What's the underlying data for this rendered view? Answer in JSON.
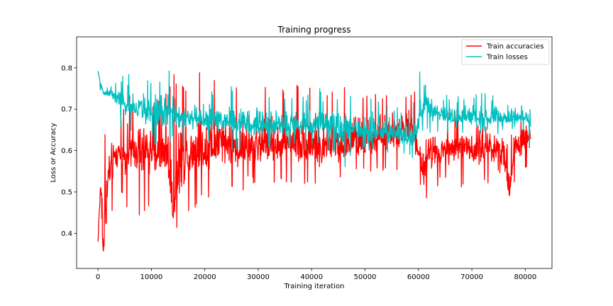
{
  "chart_data": {
    "type": "line",
    "title": "Training progress",
    "xlabel": "Training iteration",
    "ylabel": "Loss or Accuracy",
    "xlim": [
      -4000,
      85000
    ],
    "ylim": [
      0.315,
      0.875
    ],
    "xticks": [
      0,
      10000,
      20000,
      30000,
      40000,
      50000,
      60000,
      70000,
      80000
    ],
    "yticks": [
      0.4,
      0.5,
      0.6,
      0.7,
      0.8
    ],
    "xtick_labels": [
      "0",
      "10000",
      "20000",
      "30000",
      "40000",
      "50000",
      "60000",
      "70000",
      "80000"
    ],
    "ytick_labels": [
      "0.4",
      "0.5",
      "0.6",
      "0.7",
      "0.8"
    ],
    "legend_position": "top-right",
    "grid": false,
    "series": [
      {
        "name": "Train accuracies",
        "color": "#ff0000",
        "x": [
          0,
          500,
          1000,
          2000,
          3000,
          4000,
          5000,
          6000,
          7000,
          8000,
          9000,
          10000,
          11000,
          12000,
          13000,
          14000,
          15000,
          16000,
          17000,
          18000,
          20000,
          22000,
          24000,
          25000,
          26000,
          28000,
          30000,
          32000,
          34000,
          36000,
          38000,
          40000,
          42000,
          44000,
          46000,
          48000,
          50000,
          52000,
          54000,
          56000,
          58000,
          59000,
          60000,
          61000,
          62000,
          63000,
          64000,
          66000,
          68000,
          70000,
          72000,
          74000,
          76000,
          77000,
          78000,
          80000,
          81000
        ],
        "y": [
          0.38,
          0.52,
          0.34,
          0.55,
          0.58,
          0.6,
          0.58,
          0.6,
          0.59,
          0.6,
          0.6,
          0.6,
          0.59,
          0.6,
          0.6,
          0.44,
          0.56,
          0.58,
          0.6,
          0.6,
          0.6,
          0.61,
          0.61,
          0.62,
          0.6,
          0.6,
          0.61,
          0.62,
          0.61,
          0.62,
          0.61,
          0.61,
          0.6,
          0.62,
          0.61,
          0.62,
          0.62,
          0.62,
          0.64,
          0.64,
          0.65,
          0.66,
          0.6,
          0.54,
          0.6,
          0.6,
          0.6,
          0.6,
          0.61,
          0.6,
          0.61,
          0.61,
          0.6,
          0.48,
          0.62,
          0.62,
          0.64
        ],
        "y_max": [
          0.4,
          0.6,
          0.64,
          0.64,
          0.66,
          0.68,
          0.72,
          0.74,
          0.72,
          0.72,
          0.72,
          0.72,
          0.72,
          0.74,
          0.74,
          0.8,
          0.76,
          0.76,
          0.76,
          0.78,
          0.8,
          0.78,
          0.76,
          0.82,
          0.76,
          0.76,
          0.78,
          0.76,
          0.76,
          0.76,
          0.76,
          0.76,
          0.76,
          0.74,
          0.76,
          0.76,
          0.74,
          0.74,
          0.74,
          0.74,
          0.74,
          0.76,
          0.74,
          0.72,
          0.7,
          0.7,
          0.7,
          0.7,
          0.7,
          0.7,
          0.7,
          0.7,
          0.7,
          0.72,
          0.72,
          0.72,
          0.72
        ],
        "y_min": [
          0.38,
          0.46,
          0.34,
          0.42,
          0.46,
          0.5,
          0.48,
          0.44,
          0.48,
          0.42,
          0.46,
          0.44,
          0.46,
          0.48,
          0.46,
          0.4,
          0.4,
          0.4,
          0.44,
          0.46,
          0.48,
          0.5,
          0.52,
          0.5,
          0.48,
          0.52,
          0.52,
          0.52,
          0.52,
          0.52,
          0.52,
          0.52,
          0.5,
          0.52,
          0.52,
          0.54,
          0.54,
          0.54,
          0.54,
          0.54,
          0.56,
          0.56,
          0.52,
          0.46,
          0.48,
          0.5,
          0.52,
          0.52,
          0.5,
          0.5,
          0.52,
          0.5,
          0.46,
          0.52,
          0.52,
          0.54,
          0.58
        ]
      },
      {
        "name": "Train losses",
        "color": "#00bfbf",
        "x": [
          0,
          500,
          1000,
          2000,
          3000,
          4000,
          5000,
          6000,
          7000,
          8000,
          9000,
          10000,
          11000,
          12000,
          13000,
          14000,
          15000,
          16000,
          17000,
          18000,
          20000,
          22000,
          24000,
          25000,
          26000,
          28000,
          30000,
          32000,
          34000,
          36000,
          38000,
          40000,
          42000,
          44000,
          46000,
          48000,
          50000,
          52000,
          54000,
          56000,
          58000,
          59000,
          60000,
          61000,
          62000,
          63000,
          64000,
          66000,
          68000,
          70000,
          72000,
          74000,
          76000,
          77000,
          78000,
          80000,
          81000
        ],
        "y": [
          0.79,
          0.76,
          0.74,
          0.74,
          0.73,
          0.72,
          0.71,
          0.7,
          0.7,
          0.7,
          0.69,
          0.69,
          0.69,
          0.69,
          0.69,
          0.7,
          0.68,
          0.68,
          0.68,
          0.68,
          0.67,
          0.67,
          0.67,
          0.67,
          0.67,
          0.66,
          0.66,
          0.66,
          0.66,
          0.66,
          0.66,
          0.66,
          0.66,
          0.66,
          0.65,
          0.65,
          0.65,
          0.65,
          0.64,
          0.64,
          0.63,
          0.63,
          0.66,
          0.72,
          0.7,
          0.69,
          0.69,
          0.68,
          0.68,
          0.68,
          0.68,
          0.68,
          0.68,
          0.68,
          0.68,
          0.68,
          0.66
        ],
        "y_max": [
          0.8,
          0.78,
          0.76,
          0.76,
          0.76,
          0.77,
          0.79,
          0.8,
          0.79,
          0.78,
          0.78,
          0.78,
          0.78,
          0.78,
          0.78,
          0.84,
          0.76,
          0.74,
          0.74,
          0.74,
          0.75,
          0.74,
          0.74,
          0.76,
          0.74,
          0.74,
          0.74,
          0.74,
          0.74,
          0.74,
          0.74,
          0.74,
          0.76,
          0.74,
          0.74,
          0.74,
          0.72,
          0.73,
          0.71,
          0.71,
          0.7,
          0.72,
          0.79,
          0.85,
          0.76,
          0.74,
          0.74,
          0.74,
          0.74,
          0.74,
          0.74,
          0.74,
          0.74,
          0.74,
          0.74,
          0.74,
          0.74
        ],
        "y_min": [
          0.78,
          0.74,
          0.72,
          0.72,
          0.7,
          0.66,
          0.64,
          0.63,
          0.63,
          0.63,
          0.62,
          0.62,
          0.61,
          0.6,
          0.6,
          0.62,
          0.6,
          0.61,
          0.61,
          0.61,
          0.61,
          0.6,
          0.6,
          0.6,
          0.6,
          0.6,
          0.59,
          0.6,
          0.6,
          0.6,
          0.6,
          0.6,
          0.6,
          0.59,
          0.55,
          0.6,
          0.6,
          0.59,
          0.58,
          0.58,
          0.58,
          0.58,
          0.6,
          0.64,
          0.64,
          0.64,
          0.64,
          0.64,
          0.64,
          0.64,
          0.64,
          0.64,
          0.64,
          0.64,
          0.64,
          0.64,
          0.6
        ]
      }
    ]
  }
}
